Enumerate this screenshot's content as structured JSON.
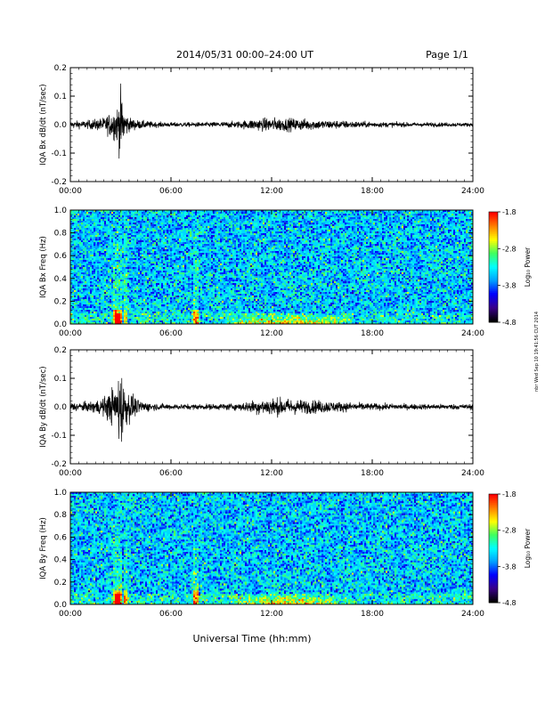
{
  "header": {
    "title": "2014/05/31  00:00–24:00 UT",
    "page": "Page 1/1"
  },
  "stamp": "nbr Wed Sep 10 19:41:56 CUT 2014",
  "xlabel": "Universal Time (hh:mm)",
  "xticks": [
    "00:00",
    "06:00",
    "12:00",
    "18:00",
    "24:00"
  ],
  "colors": {
    "trace": "#000000",
    "colormap": [
      "#000000",
      "#3a008a",
      "#0000ff",
      "#00a0ff",
      "#00ffff",
      "#40ff60",
      "#ffff00",
      "#ff8000",
      "#ff0000"
    ]
  },
  "chart_data": [
    {
      "type": "line",
      "ylabel": "IQA Bx dB/dt (nT/sec)",
      "yticks": [
        "0.2",
        "0.1",
        "0.0",
        "-0.1",
        "-0.2"
      ],
      "ylim": [
        -0.2,
        0.2
      ],
      "xlim_hours": [
        0,
        24
      ],
      "series": [
        {
          "hours": [
            0,
            1,
            2,
            2.5,
            2.8,
            3.0,
            3.2,
            3.5,
            4,
            5,
            6,
            8,
            10,
            11,
            12,
            13,
            14,
            15,
            16,
            18,
            20,
            22,
            24
          ],
          "envelope": [
            0.015,
            0.018,
            0.03,
            0.06,
            0.08,
            0.15,
            0.07,
            0.03,
            0.02,
            0.012,
            0.01,
            0.01,
            0.015,
            0.025,
            0.03,
            0.028,
            0.025,
            0.02,
            0.018,
            0.012,
            0.01,
            0.009,
            0.008
          ]
        }
      ]
    },
    {
      "type": "heatmap",
      "ylabel": "IQA Bx Freq (Hz)",
      "yticks": [
        "1.0",
        "0.8",
        "0.6",
        "0.4",
        "0.2",
        "0.0"
      ],
      "ylim": [
        0,
        1
      ],
      "colorbar": {
        "label": "Log₁₀ Power",
        "ticks": [
          "-1.8",
          "-2.8",
          "-3.8",
          "-4.8"
        ],
        "range": [
          -4.8,
          -1.8
        ]
      },
      "features": {
        "background_log_power": -3.5,
        "bursts_hours": [
          2.7,
          3.0,
          3.3,
          7.5
        ],
        "low_freq_enhancement_hours": [
          9,
          17
        ]
      }
    },
    {
      "type": "line",
      "ylabel": "IQA By dB/dt (nT/sec)",
      "yticks": [
        "0.2",
        "0.1",
        "0.0",
        "-0.1",
        "-0.2"
      ],
      "ylim": [
        -0.2,
        0.2
      ],
      "xlim_hours": [
        0,
        24
      ],
      "series": [
        {
          "hours": [
            0,
            1,
            2,
            2.5,
            2.8,
            3.0,
            3.2,
            3.5,
            4,
            5,
            6,
            8,
            10,
            11,
            12,
            13,
            14,
            15,
            16,
            18,
            20,
            22,
            24
          ],
          "envelope": [
            0.02,
            0.02,
            0.04,
            0.08,
            0.1,
            0.2,
            0.09,
            0.07,
            0.03,
            0.015,
            0.012,
            0.012,
            0.015,
            0.03,
            0.04,
            0.035,
            0.03,
            0.028,
            0.022,
            0.015,
            0.012,
            0.012,
            0.012
          ]
        }
      ]
    },
    {
      "type": "heatmap",
      "ylabel": "IQA By Freq (Hz)",
      "yticks": [
        "1.0",
        "0.8",
        "0.6",
        "0.4",
        "0.2",
        "0.0"
      ],
      "ylim": [
        0,
        1
      ],
      "colorbar": {
        "label": "Log₁₀ Power",
        "ticks": [
          "-1.8",
          "-2.8",
          "-3.8",
          "-4.8"
        ],
        "range": [
          -4.8,
          -1.8
        ]
      },
      "features": {
        "background_log_power": -3.5,
        "bursts_hours": [
          2.7,
          3.0,
          3.3,
          7.5
        ],
        "low_freq_enhancement_hours": [
          9,
          17
        ]
      }
    }
  ]
}
